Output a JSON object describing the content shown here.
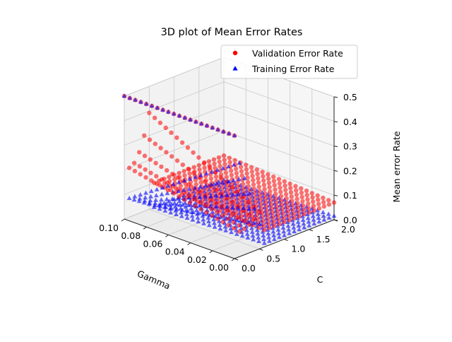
{
  "chart_data": {
    "type": "scatter3d",
    "title": "3D plot of Mean Error Rates",
    "xlabel": "Gamma",
    "ylabel": "C",
    "zlabel": "Mean error Rate",
    "xlim": [
      0.0,
      0.1
    ],
    "ylim": [
      0.0,
      2.0
    ],
    "zlim": [
      0.0,
      0.5
    ],
    "x_ticks": [
      "0.00",
      "0.02",
      "0.04",
      "0.06",
      "0.08",
      "0.10"
    ],
    "y_ticks": [
      "0.0",
      "0.5",
      "1.0",
      "1.5",
      "2.0"
    ],
    "z_ticks": [
      "0.0",
      "0.1",
      "0.2",
      "0.3",
      "0.4",
      "0.5"
    ],
    "grid": true,
    "legend_position": "top-right",
    "x": [
      0.0,
      0.005,
      0.01,
      0.015,
      0.02,
      0.025,
      0.03,
      0.035,
      0.04,
      0.045,
      0.05,
      0.055,
      0.06,
      0.065,
      0.07,
      0.075,
      0.08,
      0.085,
      0.09,
      0.095,
      0.1
    ],
    "y": [
      0.0,
      0.1,
      0.2,
      0.3,
      0.4,
      0.5,
      0.6,
      0.7,
      0.8,
      0.9,
      1.0,
      1.1,
      1.2,
      1.3,
      1.4,
      1.5,
      1.6,
      1.7,
      1.8,
      1.9,
      2.0
    ],
    "series": [
      {
        "name": "Validation Error Rate",
        "marker": "circle",
        "color": "#ff0000",
        "model": "0.5 where C = 0; otherwise 0.2 + 0.3 * ((C - 0.1) / 0.5)^2 for C < 0.6 at Gamma = 0.1, decreasing with Gamma toward 0.07 at small Gamma, with a minimum of about 0.07 to 0.10 at C >= 0.6"
      },
      {
        "name": "Training Error Rate",
        "marker": "triangle",
        "color": "#0000ff",
        "model": "0.5 where C = 0; about 0.4 to 0.05 falling with C for C <= 0.5, near 0.0 to 0.02 for C >= 0.6"
      }
    ]
  }
}
